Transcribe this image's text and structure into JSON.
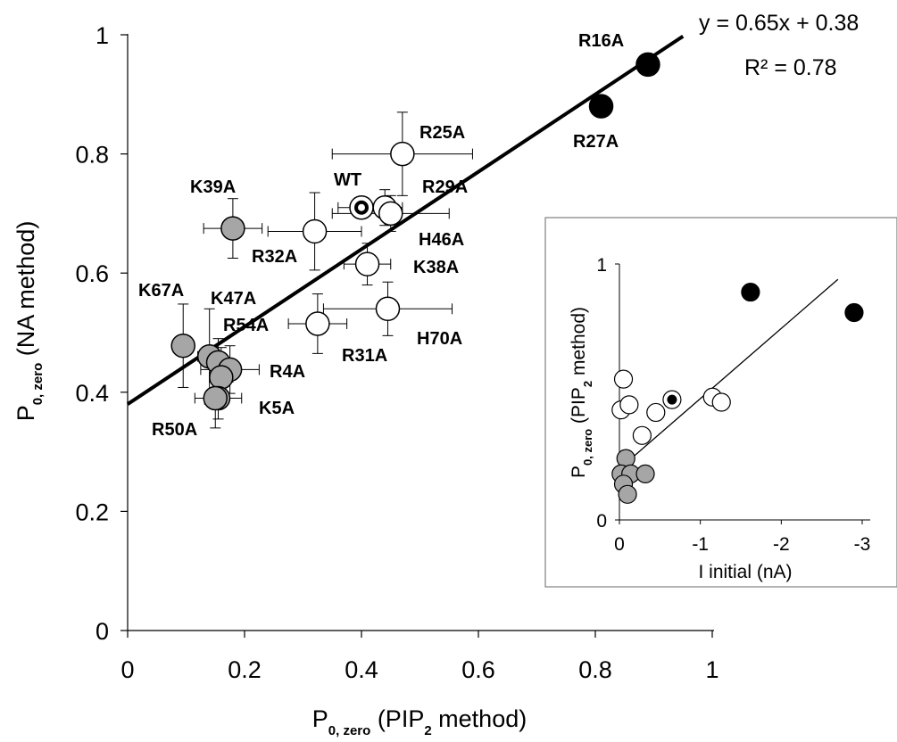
{
  "chart_data": [
    {
      "type": "scatter",
      "xlabel": "P0, zero (PIP2 method)",
      "ylabel": "P0, zero (NA method)",
      "xlim": [
        0,
        1
      ],
      "ylim": [
        0,
        1
      ],
      "xticks": [
        "0",
        "0.2",
        "0.4",
        "0.6",
        "0.8",
        "1"
      ],
      "yticks": [
        "0",
        "0.2",
        "0.4",
        "0.6",
        "0.8",
        "1"
      ],
      "equation": "y = 0.65x + 0.38",
      "r2": "R² = 0.78",
      "fit": {
        "slope": 0.65,
        "intercept": 0.38,
        "x": [
          0,
          0.95
        ]
      },
      "points": [
        {
          "label": "R16A",
          "x": 0.89,
          "y": 0.95,
          "group": "black",
          "xerr": 0,
          "yerr": 0
        },
        {
          "label": "R27A",
          "x": 0.81,
          "y": 0.88,
          "group": "black",
          "xerr": 0.01,
          "yerr": 0.01
        },
        {
          "label": "R25A",
          "x": 0.47,
          "y": 0.8,
          "group": "white",
          "xerr": 0.12,
          "yerr": 0.07
        },
        {
          "label": "WT",
          "x": 0.4,
          "y": 0.71,
          "group": "wt",
          "xerr": 0.04,
          "yerr": 0.01
        },
        {
          "label": "R29A",
          "x": 0.44,
          "y": 0.71,
          "group": "white",
          "xerr": 0.03,
          "yerr": 0.03
        },
        {
          "label": "H46A",
          "x": 0.45,
          "y": 0.7,
          "group": "white",
          "xerr": 0.1,
          "yerr": 0.03
        },
        {
          "label": "K39A",
          "x": 0.18,
          "y": 0.675,
          "group": "gray",
          "xerr": 0.05,
          "yerr": 0.05
        },
        {
          "label": "R32A",
          "x": 0.32,
          "y": 0.67,
          "group": "white",
          "xerr": 0.08,
          "yerr": 0.065
        },
        {
          "label": "K38A",
          "x": 0.41,
          "y": 0.615,
          "group": "white",
          "xerr": 0.04,
          "yerr": 0.035
        },
        {
          "label": "H70A",
          "x": 0.445,
          "y": 0.54,
          "group": "white",
          "xerr": 0.11,
          "yerr": 0.045
        },
        {
          "label": "R31A",
          "x": 0.325,
          "y": 0.515,
          "group": "white",
          "xerr": 0.05,
          "yerr": 0.05
        },
        {
          "label": "K67A",
          "x": 0.095,
          "y": 0.478,
          "group": "gray",
          "xerr": 0,
          "yerr": 0.07
        },
        {
          "label": "K47A",
          "x": 0.14,
          "y": 0.46,
          "group": "gray",
          "xerr": 0.02,
          "yerr": 0.08
        },
        {
          "label": "R54A",
          "x": 0.155,
          "y": 0.45,
          "group": "gray",
          "xerr": 0.02,
          "yerr": 0.04
        },
        {
          "label": "R4A",
          "x": 0.175,
          "y": 0.438,
          "group": "gray",
          "xerr": 0.05,
          "yerr": 0.04
        },
        {
          "label": "",
          "x": 0.16,
          "y": 0.425,
          "group": "gray",
          "xerr": 0.02,
          "yerr": 0.05
        },
        {
          "label": "K5A",
          "x": 0.155,
          "y": 0.39,
          "group": "gray",
          "xerr": 0.04,
          "yerr": 0.035
        },
        {
          "label": "R50A",
          "x": 0.15,
          "y": 0.39,
          "group": "gray",
          "xerr": 0,
          "yerr": 0.05
        }
      ]
    },
    {
      "type": "scatter",
      "xlabel": "I initial (nA)",
      "ylabel": "P0, zero (PIP2 method)",
      "xlim": [
        0,
        -3.2
      ],
      "ylim": [
        0,
        1
      ],
      "xticks": [
        "0",
        "-1",
        "-2",
        "-3"
      ],
      "yticks": [
        "0",
        "1"
      ],
      "fit": {
        "x": [
          0,
          -2.7
        ],
        "y": [
          0.2,
          0.94
        ]
      },
      "points": [
        {
          "x": -1.62,
          "y": 0.89,
          "group": "black"
        },
        {
          "x": -2.9,
          "y": 0.81,
          "group": "black"
        },
        {
          "x": -0.05,
          "y": 0.55,
          "group": "white"
        },
        {
          "x": -0.02,
          "y": 0.43,
          "group": "white"
        },
        {
          "x": -0.12,
          "y": 0.45,
          "group": "white"
        },
        {
          "x": -0.65,
          "y": 0.47,
          "group": "wt"
        },
        {
          "x": -1.15,
          "y": 0.48,
          "group": "white"
        },
        {
          "x": -1.26,
          "y": 0.46,
          "group": "white"
        },
        {
          "x": -0.45,
          "y": 0.42,
          "group": "white"
        },
        {
          "x": -0.28,
          "y": 0.33,
          "group": "white"
        },
        {
          "x": -0.08,
          "y": 0.24,
          "group": "gray"
        },
        {
          "x": -0.02,
          "y": 0.18,
          "group": "gray"
        },
        {
          "x": -0.14,
          "y": 0.18,
          "group": "gray"
        },
        {
          "x": -0.32,
          "y": 0.18,
          "group": "gray"
        },
        {
          "x": -0.05,
          "y": 0.14,
          "group": "gray"
        },
        {
          "x": -0.1,
          "y": 0.1,
          "group": "gray"
        }
      ]
    }
  ],
  "colors": {
    "black": "#000000",
    "gray": "#a6a6a6",
    "white": "#ffffff",
    "stroke": "#000000"
  }
}
